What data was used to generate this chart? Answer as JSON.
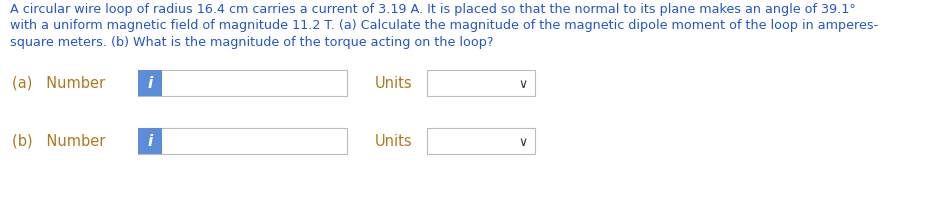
{
  "title_line1": "A circular wire loop of radius 16.4 cm carries a current of 3.19 A. It is placed so that the normal to its plane makes an angle of 39.1°",
  "title_line2": "with a uniform magnetic field of magnitude 11.2 T. (a) Calculate the magnitude of the magnetic dipole moment of the loop in amperes-",
  "title_line3": "square meters. (b) What is the magnitude of the torque acting on the loop?",
  "title_color": "#2255cc",
  "bg_color": "#ffffff",
  "label_a": "(a)   Number",
  "label_b": "(b)   Number",
  "units_label": "Units",
  "icon_color": "#5b8dd9",
  "icon_text": "i",
  "icon_text_color": "#ffffff",
  "box_edge_color": "#bbbbbb",
  "font_size_title": 9.2,
  "font_size_labels": 10.5,
  "text_color": "#333333",
  "label_color": "#b07820"
}
